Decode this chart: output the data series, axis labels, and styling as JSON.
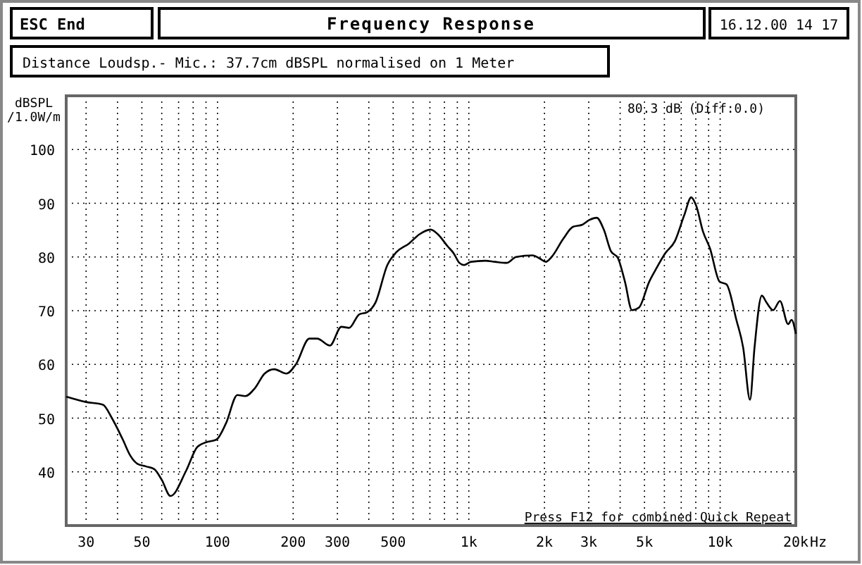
{
  "chart_data": {
    "type": "line",
    "title": "Frequency Response",
    "subtitle": "Distance Loudsp.- Mic.: 37.7cm dBSPL normalised on 1 Meter",
    "ylabel": "dBSPL /1.0W/m",
    "annotations": [
      "ESC End",
      "16.12.00 14 17",
      "80.3 dB (Diff:0.0)",
      "Press F12 for combined Quick Repeat"
    ],
    "x": [
      25,
      30,
      35,
      38,
      42,
      45,
      48,
      52,
      56,
      60,
      65,
      75,
      83,
      90,
      99,
      108,
      120,
      129,
      141,
      154,
      168,
      188,
      205,
      232,
      249,
      280,
      311,
      334,
      366,
      393,
      425,
      474,
      515,
      578,
      635,
      704,
      754,
      823,
      870,
      917,
      957,
      1020,
      1163,
      1270,
      1413,
      1542,
      1795,
      1916,
      2024,
      2135,
      2377,
      2594,
      2827,
      3020,
      3226,
      3444,
      3674,
      3919,
      4180,
      4458,
      4755,
      5222,
      5532,
      6046,
      6598,
      7199,
      7670,
      8020,
      8550,
      9110,
      9950,
      10600,
      11600,
      12350,
      13150,
      13700,
      14650,
      15300,
      16250,
      17300,
      18640,
      19240,
      20000
    ],
    "series": [
      {
        "color": "#000000",
        "values": [
          54,
          53,
          52.5,
          50,
          46,
          43,
          41.5,
          41,
          40.5,
          38.5,
          35.5,
          40.2,
          44.6,
          45.5,
          46,
          49,
          54.3,
          54.1,
          55.6,
          58.3,
          59.1,
          58.3,
          60,
          64.8,
          64.8,
          63.5,
          67,
          66.8,
          69.3,
          69.7,
          71.5,
          78.5,
          80.9,
          82.5,
          84.2,
          85.1,
          84.2,
          82,
          80.7,
          78.9,
          78.5,
          79.1,
          79.3,
          79.1,
          78.9,
          80,
          80.3,
          79.7,
          79.1,
          80,
          83.4,
          85.6,
          86,
          86.9,
          87.3,
          85.1,
          81.1,
          79.8,
          75.4,
          70.1,
          70.6,
          75.4,
          77.6,
          80.7,
          82.9,
          87.8,
          91.1,
          89.6,
          84.7,
          81.6,
          75.4,
          74.9,
          68.3,
          63.1,
          53.4,
          63.1,
          72.8,
          71.5,
          70.1,
          71.8,
          67.5,
          68.3,
          65.7
        ]
      }
    ],
    "log": "x",
    "xlim": [
      25,
      20000
    ],
    "ylim": [
      30,
      110
    ],
    "xticks": [
      30,
      {
        "value": 40,
        "label": null
      },
      50,
      {
        "value": 60,
        "label": null
      },
      {
        "value": 70,
        "label": null
      },
      {
        "value": 80,
        "label": null
      },
      {
        "value": 90,
        "label": null
      },
      100,
      200,
      300,
      {
        "value": 400,
        "label": null
      },
      500,
      {
        "value": 600,
        "label": null
      },
      {
        "value": 700,
        "label": null
      },
      {
        "value": 800,
        "label": null
      },
      {
        "value": 900,
        "label": null
      },
      {
        "value": 1000,
        "label": "1k"
      },
      {
        "value": 2000,
        "label": "2k"
      },
      {
        "value": 3000,
        "label": "3k"
      },
      {
        "value": 4000,
        "label": null
      },
      {
        "value": 5000,
        "label": "5k"
      },
      {
        "value": 6000,
        "label": null
      },
      {
        "value": 7000,
        "label": null
      },
      {
        "value": 8000,
        "label": null
      },
      {
        "value": 9000,
        "label": null
      },
      {
        "value": 10000,
        "label": "10k"
      },
      {
        "value": 20000,
        "label": "20k"
      }
    ],
    "xlabel": "Hz",
    "yticks": [
      40,
      50,
      60,
      70,
      80,
      90,
      100
    ],
    "grid": true,
    "line_style": "solid",
    "marker": "none"
  }
}
